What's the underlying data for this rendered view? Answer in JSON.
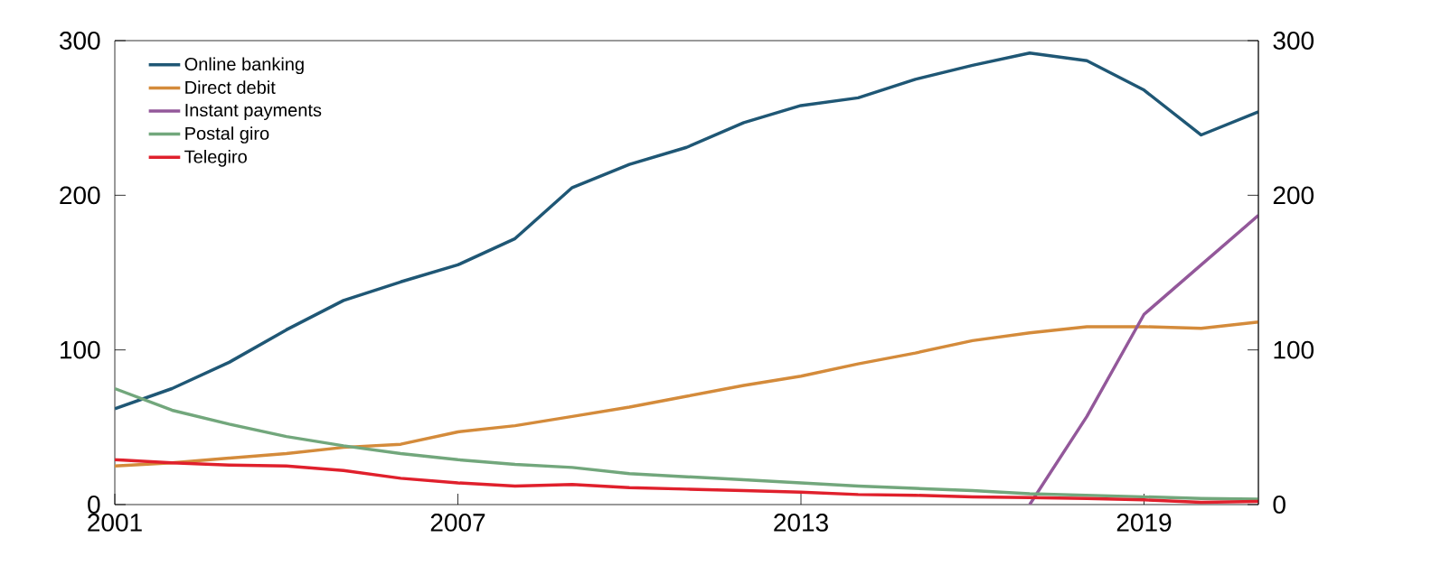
{
  "chart_data": {
    "type": "line",
    "x": [
      2001,
      2002,
      2003,
      2004,
      2005,
      2006,
      2007,
      2008,
      2009,
      2010,
      2011,
      2012,
      2013,
      2014,
      2015,
      2016,
      2017,
      2018,
      2019,
      2020,
      2021
    ],
    "series": [
      {
        "name": "Online banking",
        "color": "#1f5775",
        "values": [
          62,
          75,
          92,
          113,
          132,
          144,
          155,
          172,
          205,
          220,
          231,
          247,
          258,
          263,
          275,
          284,
          292,
          287,
          268,
          239,
          254
        ]
      },
      {
        "name": "Direct debit",
        "color": "#d48b3b",
        "values": [
          25,
          27,
          30,
          33,
          37,
          39,
          47,
          51,
          57,
          63,
          70,
          77,
          83,
          91,
          98,
          106,
          111,
          115,
          115,
          114,
          118
        ]
      },
      {
        "name": "Instant payments",
        "color": "#93589a",
        "values": [
          null,
          null,
          null,
          null,
          null,
          null,
          null,
          null,
          null,
          null,
          null,
          null,
          null,
          null,
          null,
          null,
          0,
          57,
          123,
          155,
          187
        ]
      },
      {
        "name": "Postal giro",
        "color": "#72a77c",
        "values": [
          75,
          61,
          52,
          44,
          38,
          33,
          29,
          26,
          24,
          20,
          18,
          16,
          14,
          12,
          10.5,
          9,
          7,
          6,
          5,
          4,
          3.5
        ]
      },
      {
        "name": "Telegiro",
        "color": "#e0202c",
        "values": [
          29,
          27,
          25.5,
          25,
          22,
          17,
          14,
          12,
          13,
          11,
          10,
          9,
          8,
          6.5,
          6,
          5,
          4.5,
          4,
          3,
          1.5,
          2
        ]
      }
    ],
    "xlim": [
      2001,
      2021
    ],
    "xticks": [
      2001,
      2007,
      2013,
      2019
    ],
    "ylim": [
      0,
      300
    ],
    "yticks": [
      0,
      100,
      200,
      300
    ],
    "y2lim": [
      0,
      300
    ],
    "y2ticks": [
      0,
      100,
      200,
      300
    ],
    "legend": "top left",
    "grid": false,
    "marker": "none",
    "line_style": "solid"
  }
}
